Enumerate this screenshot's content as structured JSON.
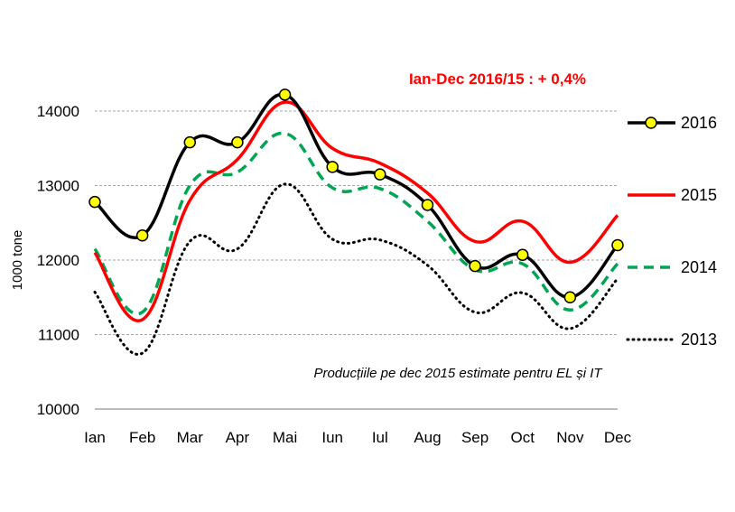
{
  "chart_data": {
    "type": "line",
    "annotation_title": "Ian-Dec 2016/15 : + 0,4%",
    "annotation_note": "Producțiile pe dec 2015 estimate pentru EL și IT",
    "ylabel": "1000 tone",
    "ylim": [
      10000,
      14000
    ],
    "yticks": [
      "10000",
      "11000",
      "12000",
      "13000",
      "14000"
    ],
    "categories": [
      "Ian",
      "Feb",
      "Mar",
      "Apr",
      "Mai",
      "Iun",
      "Iul",
      "Aug",
      "Sep",
      "Oct",
      "Nov",
      "Dec"
    ],
    "grid": "horizontal dashed",
    "legend_position": "right",
    "series": [
      {
        "name": "2016",
        "color": "#000000",
        "style": "solid-markers",
        "marker_color": "#ffff00",
        "values": [
          12780,
          12330,
          13580,
          13580,
          14220,
          13250,
          13150,
          12740,
          11920,
          12070,
          11500,
          12200
        ]
      },
      {
        "name": "2015",
        "color": "#ff0000",
        "style": "solid",
        "values": [
          12100,
          11200,
          12800,
          13350,
          14120,
          13500,
          13300,
          12900,
          12250,
          12520,
          11970,
          12600
        ]
      },
      {
        "name": "2014",
        "color": "#00a651",
        "style": "dashed",
        "values": [
          12150,
          11300,
          13000,
          13180,
          13700,
          12970,
          12960,
          12520,
          11870,
          11950,
          11330,
          11950
        ]
      },
      {
        "name": "2013",
        "color": "#000000",
        "style": "dotted",
        "values": [
          11570,
          10750,
          12250,
          12150,
          13020,
          12280,
          12270,
          11930,
          11300,
          11560,
          11080,
          11750
        ]
      }
    ]
  }
}
